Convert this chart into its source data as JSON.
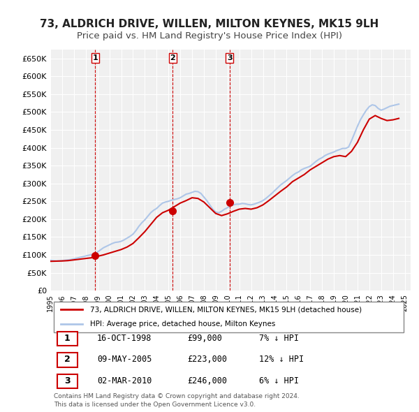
{
  "title": "73, ALDRICH DRIVE, WILLEN, MILTON KEYNES, MK15 9LH",
  "subtitle": "Price paid vs. HM Land Registry's House Price Index (HPI)",
  "title_fontsize": 11,
  "subtitle_fontsize": 9.5,
  "ylim": [
    0,
    675000
  ],
  "yticks": [
    0,
    50000,
    100000,
    150000,
    200000,
    250000,
    300000,
    350000,
    400000,
    450000,
    500000,
    550000,
    600000,
    650000
  ],
  "ytick_labels": [
    "£0",
    "£50K",
    "£100K",
    "£150K",
    "£200K",
    "£250K",
    "£300K",
    "£350K",
    "£400K",
    "£450K",
    "£500K",
    "£550K",
    "£600K",
    "£650K"
  ],
  "xlim_start": 1995.0,
  "xlim_end": 2025.5,
  "background_color": "#ffffff",
  "plot_bg_color": "#f0f0f0",
  "grid_color": "#ffffff",
  "hpi_color": "#aec6e8",
  "price_color": "#cc0000",
  "vline_color": "#cc0000",
  "transactions": [
    {
      "year": 1998.79,
      "price": 99000,
      "label": "1"
    },
    {
      "year": 2005.36,
      "price": 223000,
      "label": "2"
    },
    {
      "year": 2010.17,
      "price": 246000,
      "label": "3"
    }
  ],
  "transaction_table": [
    {
      "num": "1",
      "date": "16-OCT-1998",
      "price": "£99,000",
      "hpi": "7% ↓ HPI"
    },
    {
      "num": "2",
      "date": "09-MAY-2005",
      "price": "£223,000",
      "hpi": "12% ↓ HPI"
    },
    {
      "num": "3",
      "date": "02-MAR-2010",
      "price": "£246,000",
      "hpi": "6% ↓ HPI"
    }
  ],
  "legend_line1": "73, ALDRICH DRIVE, WILLEN, MILTON KEYNES, MK15 9LH (detached house)",
  "legend_line2": "HPI: Average price, detached house, Milton Keynes",
  "footer_line1": "Contains HM Land Registry data © Crown copyright and database right 2024.",
  "footer_line2": "This data is licensed under the Open Government Licence v3.0.",
  "hpi_data_x": [
    1995.0,
    1995.25,
    1995.5,
    1995.75,
    1996.0,
    1996.25,
    1996.5,
    1996.75,
    1997.0,
    1997.25,
    1997.5,
    1997.75,
    1998.0,
    1998.25,
    1998.5,
    1998.75,
    1999.0,
    1999.25,
    1999.5,
    1999.75,
    2000.0,
    2000.25,
    2000.5,
    2000.75,
    2001.0,
    2001.25,
    2001.5,
    2001.75,
    2002.0,
    2002.25,
    2002.5,
    2002.75,
    2003.0,
    2003.25,
    2003.5,
    2003.75,
    2004.0,
    2004.25,
    2004.5,
    2004.75,
    2005.0,
    2005.25,
    2005.5,
    2005.75,
    2006.0,
    2006.25,
    2006.5,
    2006.75,
    2007.0,
    2007.25,
    2007.5,
    2007.75,
    2008.0,
    2008.25,
    2008.5,
    2008.75,
    2009.0,
    2009.25,
    2009.5,
    2009.75,
    2010.0,
    2010.25,
    2010.5,
    2010.75,
    2011.0,
    2011.25,
    2011.5,
    2011.75,
    2012.0,
    2012.25,
    2012.5,
    2012.75,
    2013.0,
    2013.25,
    2013.5,
    2013.75,
    2014.0,
    2014.25,
    2014.5,
    2014.75,
    2015.0,
    2015.25,
    2015.5,
    2015.75,
    2016.0,
    2016.25,
    2016.5,
    2016.75,
    2017.0,
    2017.25,
    2017.5,
    2017.75,
    2018.0,
    2018.25,
    2018.5,
    2018.75,
    2019.0,
    2019.25,
    2019.5,
    2019.75,
    2020.0,
    2020.25,
    2020.5,
    2020.75,
    2021.0,
    2021.25,
    2021.5,
    2021.75,
    2022.0,
    2022.25,
    2022.5,
    2022.75,
    2023.0,
    2023.25,
    2023.5,
    2023.75,
    2024.0,
    2024.25,
    2024.5
  ],
  "hpi_data_y": [
    85000,
    84000,
    83000,
    83500,
    84000,
    85000,
    86000,
    87000,
    89000,
    91000,
    93000,
    95000,
    97000,
    99000,
    101000,
    103000,
    108000,
    114000,
    120000,
    124000,
    128000,
    132000,
    135000,
    136000,
    138000,
    142000,
    147000,
    152000,
    158000,
    168000,
    180000,
    190000,
    198000,
    208000,
    218000,
    225000,
    230000,
    238000,
    245000,
    248000,
    250000,
    253000,
    255000,
    257000,
    260000,
    265000,
    270000,
    272000,
    275000,
    278000,
    277000,
    272000,
    262000,
    252000,
    240000,
    228000,
    220000,
    218000,
    222000,
    228000,
    232000,
    238000,
    240000,
    242000,
    242000,
    244000,
    243000,
    241000,
    240000,
    242000,
    245000,
    248000,
    252000,
    258000,
    265000,
    272000,
    280000,
    288000,
    296000,
    302000,
    308000,
    315000,
    322000,
    328000,
    332000,
    338000,
    342000,
    345000,
    348000,
    355000,
    362000,
    368000,
    372000,
    378000,
    382000,
    385000,
    388000,
    392000,
    395000,
    398000,
    398000,
    402000,
    420000,
    440000,
    460000,
    478000,
    492000,
    505000,
    515000,
    520000,
    518000,
    510000,
    505000,
    508000,
    512000,
    516000,
    518000,
    520000,
    522000
  ],
  "price_data_x": [
    1995.0,
    1995.5,
    1996.0,
    1996.5,
    1997.0,
    1997.5,
    1998.0,
    1998.5,
    1999.0,
    1999.5,
    2000.0,
    2000.5,
    2001.0,
    2001.5,
    2002.0,
    2002.5,
    2003.0,
    2003.5,
    2004.0,
    2004.5,
    2005.0,
    2005.5,
    2006.0,
    2006.5,
    2007.0,
    2007.5,
    2008.0,
    2008.5,
    2009.0,
    2009.5,
    2010.0,
    2010.5,
    2011.0,
    2011.5,
    2012.0,
    2012.5,
    2013.0,
    2013.5,
    2014.0,
    2014.5,
    2015.0,
    2015.5,
    2016.0,
    2016.5,
    2017.0,
    2017.5,
    2018.0,
    2018.5,
    2019.0,
    2019.5,
    2020.0,
    2020.5,
    2021.0,
    2021.5,
    2022.0,
    2022.5,
    2023.0,
    2023.5,
    2024.0,
    2024.5
  ],
  "price_data_y": [
    82000,
    82500,
    83000,
    84000,
    86000,
    88000,
    90000,
    92000,
    96000,
    100000,
    105000,
    110000,
    115000,
    122000,
    132000,
    148000,
    165000,
    185000,
    205000,
    218000,
    225000,
    235000,
    245000,
    252000,
    260000,
    258000,
    248000,
    232000,
    216000,
    210000,
    215000,
    222000,
    228000,
    230000,
    228000,
    232000,
    240000,
    252000,
    265000,
    278000,
    290000,
    305000,
    315000,
    325000,
    338000,
    348000,
    358000,
    368000,
    375000,
    378000,
    375000,
    390000,
    415000,
    450000,
    480000,
    490000,
    482000,
    476000,
    478000,
    482000
  ]
}
